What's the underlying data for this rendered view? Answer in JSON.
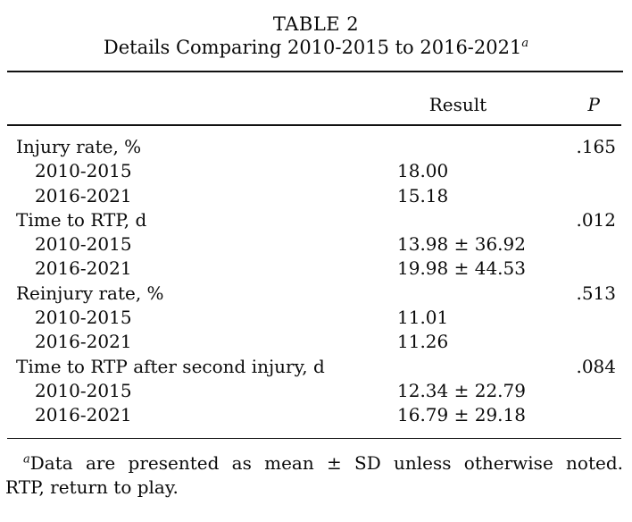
{
  "title": {
    "line1": "TABLE 2",
    "line2": "Details Comparing 2010-2015 to 2016-2021",
    "superscript": "a"
  },
  "header": {
    "col_result": "Result",
    "col_p": "P"
  },
  "rows": [
    {
      "label": "Injury rate, %",
      "indent": false,
      "result": "",
      "p": ".165"
    },
    {
      "label": "2010-2015",
      "indent": true,
      "result": "18.00",
      "p": ""
    },
    {
      "label": "2016-2021",
      "indent": true,
      "result": "15.18",
      "p": ""
    },
    {
      "label": "Time to RTP, d",
      "indent": false,
      "result": "",
      "p": ".012"
    },
    {
      "label": "2010-2015",
      "indent": true,
      "result": "13.98 ± 36.92",
      "p": ""
    },
    {
      "label": "2016-2021",
      "indent": true,
      "result": "19.98 ± 44.53",
      "p": ""
    },
    {
      "label": "Reinjury rate, %",
      "indent": false,
      "result": "",
      "p": ".513"
    },
    {
      "label": "2010-2015",
      "indent": true,
      "result": "11.01",
      "p": ""
    },
    {
      "label": "2016-2021",
      "indent": true,
      "result": "11.26",
      "p": ""
    },
    {
      "label": "Time to RTP after second injury, d",
      "indent": false,
      "result": "",
      "p": ".084"
    },
    {
      "label": "2010-2015",
      "indent": true,
      "result": "12.34 ± 22.79",
      "p": ""
    },
    {
      "label": "2016-2021",
      "indent": true,
      "result": "16.79 ± 29.18",
      "p": ""
    }
  ],
  "footnote": {
    "superscript": "a",
    "line1": "Data are presented as mean ± SD unless otherwise noted.",
    "line2": "RTP, return to play."
  },
  "colors": {
    "background": "#ffffff",
    "text": "#0a0a0a",
    "rule": "#111111"
  }
}
